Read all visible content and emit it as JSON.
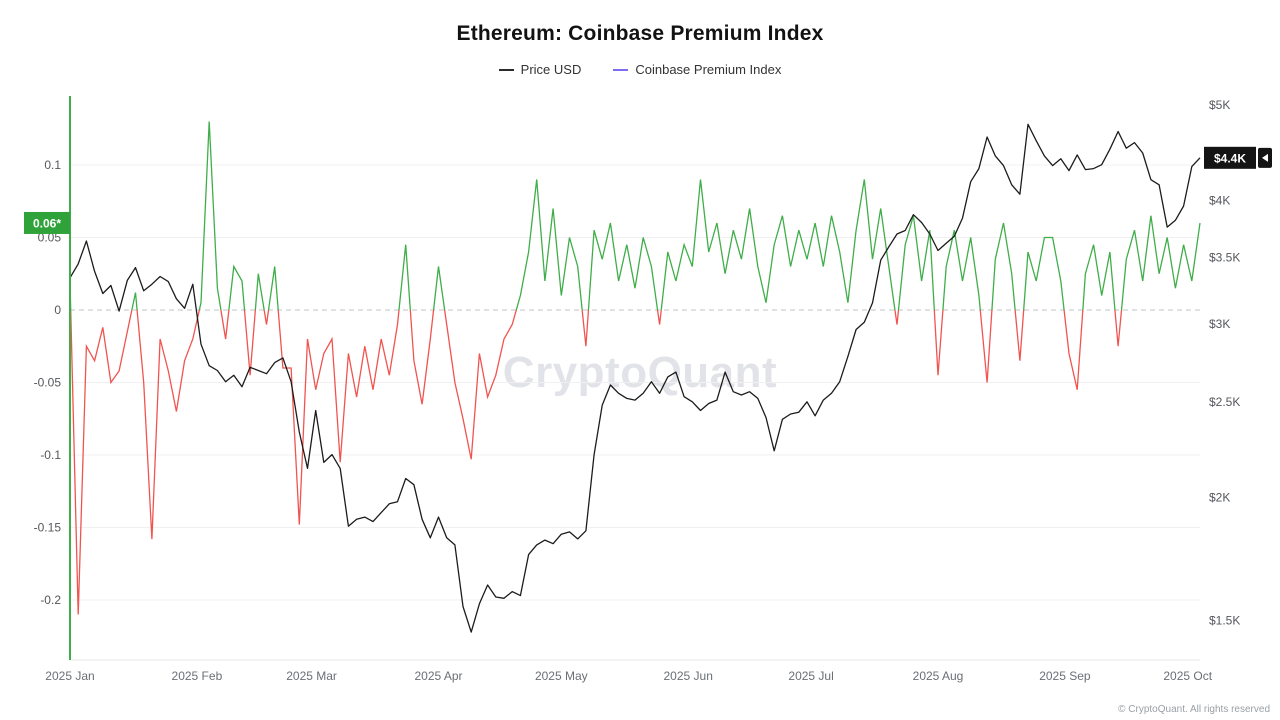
{
  "header": {
    "title": "Ethereum: Coinbase Premium Index"
  },
  "legend": [
    {
      "label": "Price USD",
      "color": "#2b2b2b"
    },
    {
      "label": "Coinbase Premium Index",
      "color": "#7b6cf0"
    }
  ],
  "watermark": "CryptoQuant",
  "footer": {
    "copyright": "© CryptoQuant. All rights reserved"
  },
  "chart_data": {
    "type": "line",
    "title": "Ethereum: Coinbase Premium Index",
    "x_start": "2025-01-01",
    "x_step_days": 2,
    "x_ticks": [
      {
        "day": 0,
        "label": "2025 Jan"
      },
      {
        "day": 31,
        "label": "2025 Feb"
      },
      {
        "day": 59,
        "label": "2025 Mar"
      },
      {
        "day": 90,
        "label": "2025 Apr"
      },
      {
        "day": 120,
        "label": "2025 May"
      },
      {
        "day": 151,
        "label": "2025 Jun"
      },
      {
        "day": 181,
        "label": "2025 Jul"
      },
      {
        "day": 212,
        "label": "2025 Aug"
      },
      {
        "day": 243,
        "label": "2025 Sep"
      },
      {
        "day": 273,
        "label": "2025 Oct"
      }
    ],
    "left_axis": {
      "name": "Coinbase Premium Index",
      "scale": "linear",
      "domain": [
        -0.2414,
        0.1448
      ],
      "zero_line_dashed": true,
      "ticks": [
        {
          "v": 0.1,
          "label": "0.1"
        },
        {
          "v": 0.05,
          "label": "0.05"
        },
        {
          "v": 0,
          "label": "0"
        },
        {
          "v": -0.05,
          "label": "-0.05"
        },
        {
          "v": -0.1,
          "label": "-0.1"
        },
        {
          "v": -0.15,
          "label": "-0.15"
        },
        {
          "v": -0.2,
          "label": "-0.2"
        }
      ]
    },
    "right_axis": {
      "name": "Price USD",
      "scale": "log",
      "domain": [
        1368,
        5059
      ],
      "ticks": [
        {
          "v": 5000,
          "label": "$5K"
        },
        {
          "v": 4000,
          "label": "$4K"
        },
        {
          "v": 3500,
          "label": "$3.5K"
        },
        {
          "v": 3000,
          "label": "$3K"
        },
        {
          "v": 2500,
          "label": "$2.5K"
        },
        {
          "v": 2000,
          "label": "$2K"
        },
        {
          "v": 1500,
          "label": "$1.5K"
        }
      ]
    },
    "series": [
      {
        "name": "Price USD",
        "axis": "right",
        "color": "#1c1c1c",
        "values": [
          3340,
          3450,
          3640,
          3390,
          3220,
          3280,
          3090,
          3320,
          3420,
          3240,
          3290,
          3350,
          3310,
          3180,
          3110,
          3290,
          2860,
          2720,
          2690,
          2620,
          2660,
          2590,
          2710,
          2690,
          2670,
          2740,
          2770,
          2620,
          2330,
          2140,
          2450,
          2170,
          2210,
          2140,
          1870,
          1900,
          1910,
          1890,
          1930,
          1970,
          1980,
          2090,
          2060,
          1900,
          1820,
          1910,
          1820,
          1790,
          1550,
          1460,
          1560,
          1630,
          1585,
          1580,
          1605,
          1590,
          1750,
          1790,
          1810,
          1795,
          1835,
          1845,
          1815,
          1850,
          2210,
          2480,
          2600,
          2550,
          2520,
          2510,
          2550,
          2620,
          2550,
          2650,
          2680,
          2530,
          2500,
          2450,
          2490,
          2510,
          2680,
          2560,
          2540,
          2560,
          2520,
          2410,
          2230,
          2400,
          2430,
          2440,
          2500,
          2420,
          2510,
          2550,
          2620,
          2780,
          2960,
          3010,
          3150,
          3480,
          3590,
          3700,
          3730,
          3870,
          3800,
          3700,
          3560,
          3620,
          3680,
          3840,
          4180,
          4310,
          4640,
          4440,
          4340,
          4150,
          4060,
          4780,
          4600,
          4440,
          4340,
          4410,
          4290,
          4450,
          4300,
          4310,
          4350,
          4510,
          4700,
          4520,
          4580,
          4470,
          4200,
          4150,
          3760,
          3820,
          3950,
          4330,
          4420
        ]
      },
      {
        "name": "Coinbase Premium Index",
        "axis": "left",
        "color_positive": "#3fae49",
        "color_negative": "#f0544f",
        "values": [
          0.02,
          -0.21,
          -0.025,
          -0.035,
          -0.012,
          -0.05,
          -0.042,
          -0.015,
          0.012,
          -0.05,
          -0.158,
          -0.02,
          -0.042,
          -0.07,
          -0.035,
          -0.02,
          0.005,
          0.13,
          0.015,
          -0.02,
          0.03,
          0.02,
          -0.045,
          0.025,
          -0.01,
          0.03,
          -0.04,
          -0.04,
          -0.148,
          -0.02,
          -0.055,
          -0.03,
          -0.02,
          -0.105,
          -0.03,
          -0.06,
          -0.025,
          -0.055,
          -0.02,
          -0.045,
          -0.01,
          0.045,
          -0.035,
          -0.065,
          -0.02,
          0.03,
          -0.01,
          -0.05,
          -0.075,
          -0.103,
          -0.03,
          -0.06,
          -0.045,
          -0.02,
          -0.01,
          0.01,
          0.04,
          0.09,
          0.02,
          0.07,
          0.01,
          0.05,
          0.03,
          -0.025,
          0.055,
          0.035,
          0.06,
          0.02,
          0.045,
          0.015,
          0.05,
          0.03,
          -0.01,
          0.04,
          0.02,
          0.045,
          0.03,
          0.09,
          0.04,
          0.06,
          0.025,
          0.055,
          0.035,
          0.07,
          0.03,
          0.005,
          0.045,
          0.065,
          0.03,
          0.055,
          0.035,
          0.06,
          0.03,
          0.065,
          0.04,
          0.005,
          0.055,
          0.09,
          0.035,
          0.07,
          0.03,
          -0.01,
          0.045,
          0.065,
          0.02,
          0.055,
          -0.045,
          0.03,
          0.055,
          0.02,
          0.05,
          0.01,
          -0.05,
          0.035,
          0.06,
          0.025,
          -0.035,
          0.04,
          0.02,
          0.05,
          0.05,
          0.02,
          -0.03,
          -0.055,
          0.025,
          0.045,
          0.01,
          0.04,
          -0.025,
          0.035,
          0.055,
          0.02,
          0.065,
          0.025,
          0.05,
          0.015,
          0.045,
          0.02,
          0.06
        ]
      }
    ],
    "current_values": {
      "premium": {
        "label": "0.06*",
        "value": 0.06,
        "badge_color": "#2fa33a"
      },
      "price": {
        "label": "$4.4K",
        "value": 4420,
        "badge_color": "#141414"
      }
    }
  }
}
